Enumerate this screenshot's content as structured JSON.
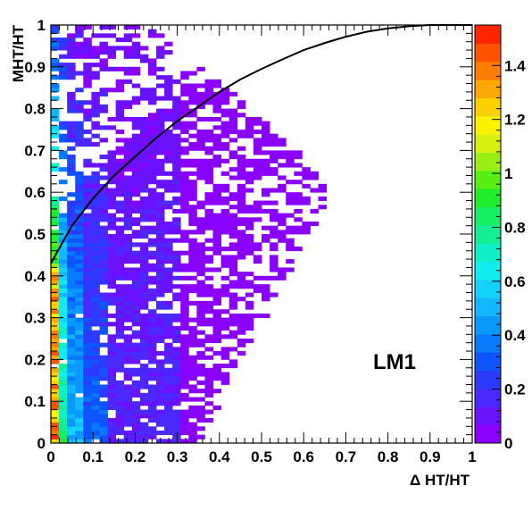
{
  "chart_data": {
    "type": "heatmap",
    "title": "",
    "xlabel": "Δ HT/HT",
    "ylabel": "MHT/HT",
    "xlim": [
      0,
      1
    ],
    "ylim": [
      0,
      1
    ],
    "x_ticks": [
      "0",
      "0.1",
      "0.2",
      "0.3",
      "0.4",
      "0.5",
      "0.6",
      "0.7",
      "0.8",
      "0.9",
      "1"
    ],
    "y_ticks": [
      "0",
      "0.1",
      "0.2",
      "0.3",
      "0.4",
      "0.5",
      "0.6",
      "0.7",
      "0.8",
      "0.9",
      "1"
    ],
    "colorbar": {
      "range": [
        0,
        1.55
      ],
      "ticks": [
        "0",
        "0.2",
        "0.4",
        "0.6",
        "0.8",
        "1",
        "1.2",
        "1.4"
      ],
      "palette": [
        "#8a00ff",
        "#6a12ff",
        "#4a28ff",
        "#2b3aff",
        "#0f55ff",
        "#0878ff",
        "#0c99ff",
        "#14b6ff",
        "#14d2ff",
        "#10ecf0",
        "#10f0c8",
        "#14ef96",
        "#16ee64",
        "#20ec2e",
        "#5aef14",
        "#98f012",
        "#d6f110",
        "#fff200",
        "#ffd000",
        "#ffa800",
        "#ff7e00",
        "#ff5300",
        "#ff2400"
      ]
    },
    "grid": false,
    "annotation": "LM1",
    "curve": {
      "x": [
        0,
        0.05,
        0.1,
        0.15,
        0.2,
        0.25,
        0.3,
        0.35,
        0.4,
        0.45,
        0.5,
        0.55,
        0.6,
        0.65,
        0.7,
        0.75,
        0.8,
        0.85,
        0.9,
        0.95,
        1.0
      ],
      "y": [
        0.43,
        0.52,
        0.585,
        0.64,
        0.685,
        0.73,
        0.77,
        0.805,
        0.84,
        0.87,
        0.895,
        0.918,
        0.94,
        0.957,
        0.972,
        0.984,
        0.992,
        0.997,
        1.0,
        1.0,
        1.0
      ]
    }
  }
}
